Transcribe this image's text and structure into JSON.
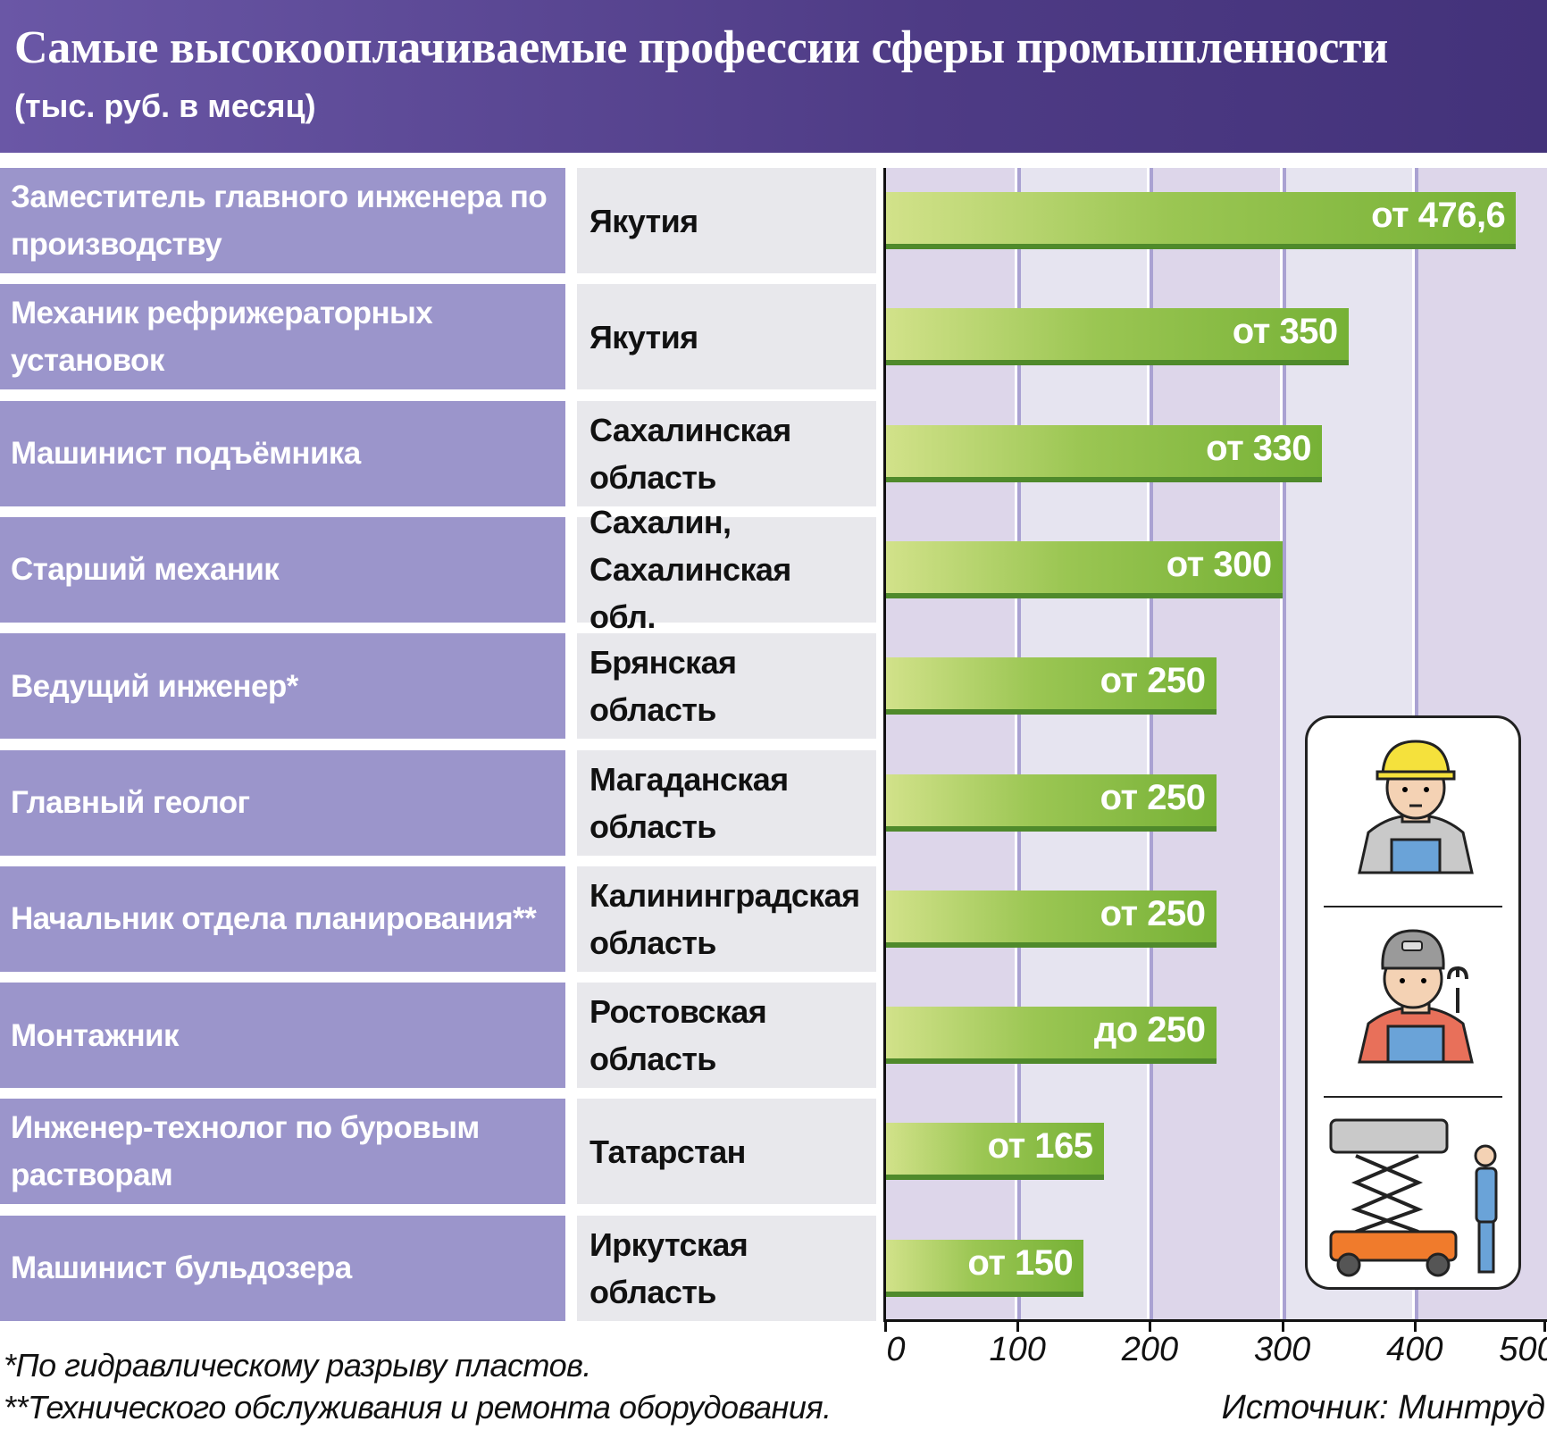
{
  "header": {
    "title": "Самые высокооплачиваемые профессии сферы промышленности",
    "subtitle": "(тыс. руб. в месяц)"
  },
  "colors": {
    "header": "#5a479a",
    "profession_cell": "#9b95cb",
    "region_cell": "#e8e8ec",
    "bar": "#76b136",
    "bar_edge": "#4f8a2b",
    "gridline": "#aaa2d2"
  },
  "chart_data": {
    "type": "bar",
    "orientation": "horizontal",
    "title": "Самые высокооплачиваемые профессии сферы промышленности",
    "subtitle": "(тыс. руб. в месяц)",
    "xlim": [
      0,
      500
    ],
    "xticks": [
      "0",
      "100",
      "200",
      "300",
      "400",
      "500"
    ],
    "grid": true,
    "rows": [
      {
        "profession": "Заместитель главного инженера по производству",
        "region": "Якутия",
        "value": 476.6,
        "label": "от 476,6"
      },
      {
        "profession": "Механик рефрижераторных установок",
        "region": "Якутия",
        "value": 350,
        "label": "от 350"
      },
      {
        "profession": "Машинист подъёмника",
        "region": "Сахалинская область",
        "value": 330,
        "label": "от 330"
      },
      {
        "profession": "Старший механик",
        "region": "Сахалин, Сахалинская обл.",
        "value": 300,
        "label": "от 300"
      },
      {
        "profession": "Ведущий инженер*",
        "region": "Брянская область",
        "value": 250,
        "label": "от 250"
      },
      {
        "profession": "Главный геолог",
        "region": "Магаданская область",
        "value": 250,
        "label": "от 250"
      },
      {
        "profession": "Начальник отдела планирования**",
        "region": "Калининградская область",
        "value": 250,
        "label": "от 250"
      },
      {
        "profession": "Монтажник",
        "region": "Ростовская область",
        "value": 250,
        "label": "до 250"
      },
      {
        "profession": "Инженер-технолог по буровым растворам",
        "region": "Татарстан",
        "value": 165,
        "label": "от 165"
      },
      {
        "profession": "Машинист бульдозера",
        "region": "Иркутская область",
        "value": 150,
        "label": "от 150"
      }
    ]
  },
  "footnotes": [
    "*По гидравлическому разрыву пластов.",
    "**Технического обслуживания и ремонта оборудования."
  ],
  "source": "Источник: Минтруд",
  "illustrations": [
    "engineer-hardhat-icon",
    "mechanic-wrench-icon",
    "scissor-lift-operator-icon"
  ]
}
